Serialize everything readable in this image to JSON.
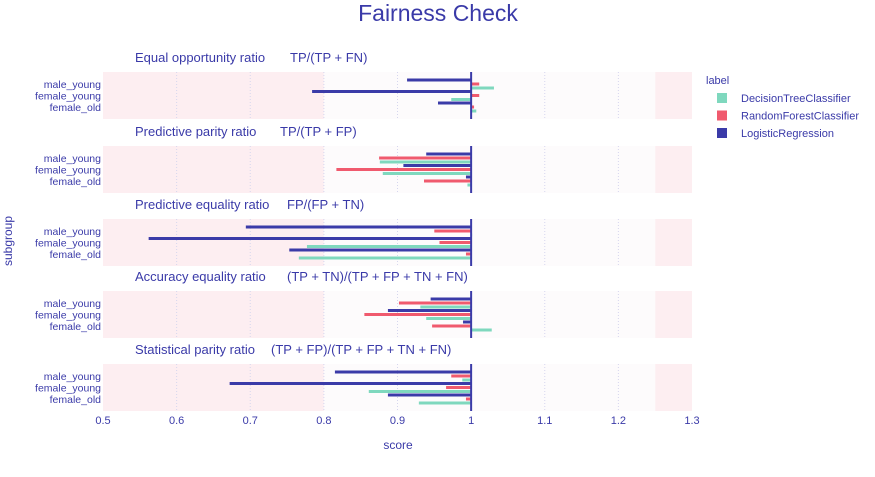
{
  "chart_data": {
    "type": "bar",
    "title": "Fairness Check",
    "xlabel": "score",
    "ylabel": "subgroup",
    "xlim": [
      0.5,
      1.3
    ],
    "xticks": [
      "0.5",
      "0.6",
      "0.7",
      "0.8",
      "0.9",
      "1",
      "1.1",
      "1.2",
      "1.3"
    ],
    "fair_range": [
      0.8,
      1.25
    ],
    "subgroups": [
      "male_young",
      "female_young",
      "female_old"
    ],
    "legend": {
      "title": "label",
      "placement": "right"
    },
    "series_meta": [
      {
        "name": "DecisionTreeClassifier",
        "color": "#7fd8be"
      },
      {
        "name": "RandomForestClassifier",
        "color": "#f05a6e"
      },
      {
        "name": "LogisticRegression",
        "color": "#3b3ba8"
      }
    ],
    "panels": [
      {
        "title": "Equal opportunity ratio",
        "formula": "TP/(TP + FN)",
        "series": {
          "LogisticRegression": [
            0.913,
            0.784,
            0.955
          ],
          "RandomForestClassifier": [
            1.011,
            1.011,
            1.004
          ],
          "DecisionTreeClassifier": [
            1.031,
            0.973,
            1.007
          ]
        }
      },
      {
        "title": "Predictive parity ratio",
        "formula": "TP/(TP + FP)",
        "series": {
          "LogisticRegression": [
            0.939,
            0.908,
            0.993
          ],
          "RandomForestClassifier": [
            0.875,
            0.817,
            0.936
          ],
          "DecisionTreeClassifier": [
            0.876,
            0.88,
            0.995
          ]
        }
      },
      {
        "title": "Predictive equality ratio",
        "formula": "FP/(FP + TN)",
        "series": {
          "LogisticRegression": [
            0.694,
            0.562,
            0.753
          ],
          "RandomForestClassifier": [
            0.95,
            0.957,
            0.993
          ],
          "DecisionTreeClassifier": [
            1.0,
            0.777,
            0.766
          ]
        }
      },
      {
        "title": "Accuracy equality ratio",
        "formula": "(TP + TN)/(TP + FP + TN + FN)",
        "series": {
          "LogisticRegression": [
            0.945,
            0.887,
            0.989
          ],
          "RandomForestClassifier": [
            0.902,
            0.855,
            0.947
          ],
          "DecisionTreeClassifier": [
            0.931,
            0.939,
            1.028
          ]
        }
      },
      {
        "title": "Statistical parity ratio",
        "formula": "(TP + FP)/(TP + FP + TN + FN)",
        "series": {
          "LogisticRegression": [
            0.815,
            0.672,
            0.887
          ],
          "RandomForestClassifier": [
            0.973,
            0.966,
            0.993
          ],
          "DecisionTreeClassifier": [
            0.988,
            0.861,
            0.929
          ]
        }
      }
    ]
  }
}
